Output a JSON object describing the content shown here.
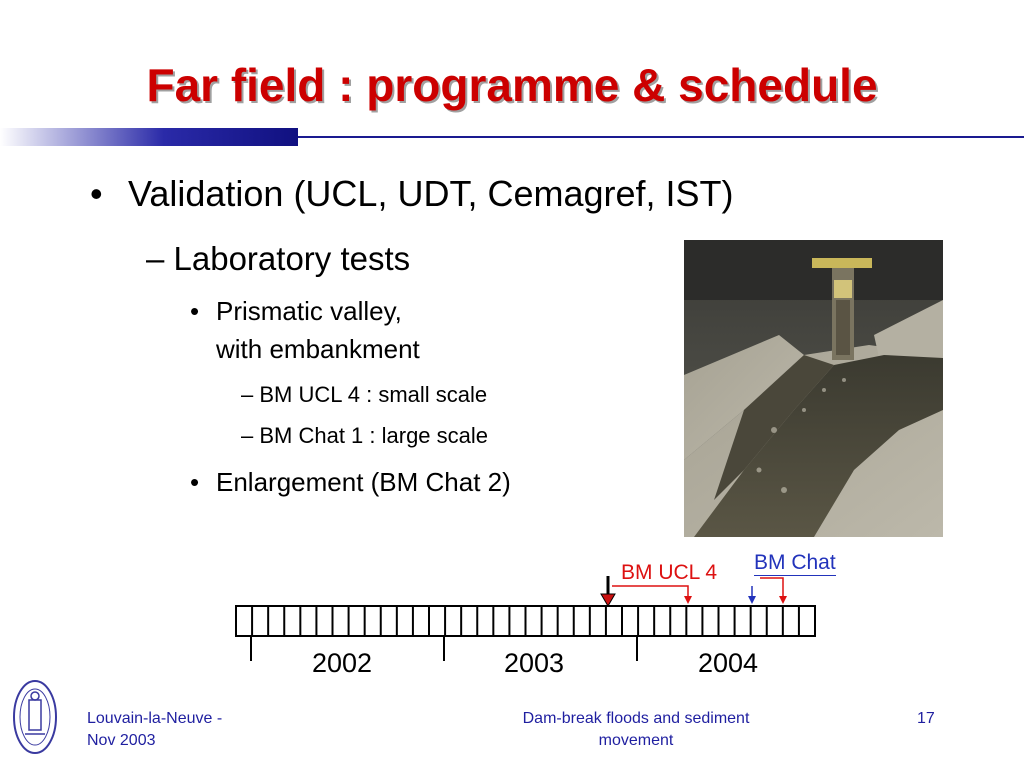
{
  "slide": {
    "title": "Far field : programme & schedule",
    "bullets": {
      "b1_marker": "•",
      "b1": "Validation (UCL, UDT, Cemagref, IST)",
      "b2": "– Laboratory tests",
      "b3_marker": "•",
      "b3_line1": "Prismatic valley,",
      "b3_line2": "with embankment",
      "b4a": "– BM UCL 4 : small scale",
      "b4b": "– BM Chat 1 : large scale",
      "b5_marker": "•",
      "b5": "Enlargement (BM Chat 2)"
    },
    "timeline": {
      "labels": {
        "ucl": "BM UCL 4",
        "chat": "BM Chat"
      },
      "years": [
        "2002",
        "2003",
        "2004"
      ],
      "colors": {
        "ucl": "#dd1111",
        "chat": "#2233bb"
      }
    },
    "footer": {
      "left_line1": "Louvain-la-Neuve -",
      "left_line2": "Nov 2003",
      "center_line1": "Dam-break floods and sediment",
      "center_line2": "movement",
      "page": "17"
    },
    "colors": {
      "title": "#cc0000",
      "footer": "#1f1fa0"
    }
  }
}
